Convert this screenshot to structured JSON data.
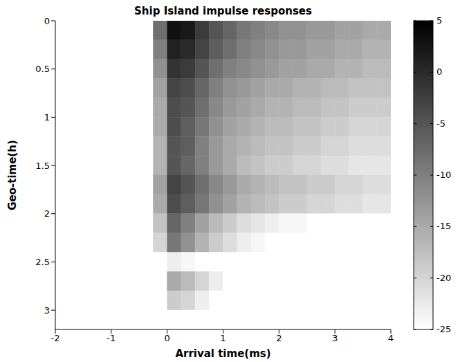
{
  "chart_data": {
    "type": "heatmap",
    "title": "Ship Island impulse responses",
    "x_label": "Arrival time(ms)",
    "y_label": "Geo-time(h)",
    "xlim": [
      -2,
      4
    ],
    "xticks": [
      -2,
      -1,
      0,
      1,
      2,
      3,
      4
    ],
    "ylim": [
      0,
      3.2
    ],
    "yticks": [
      0,
      0.5,
      1,
      1.5,
      2,
      2.5,
      3
    ],
    "x_bins": [
      -2,
      -1.75,
      -1.5,
      -1.25,
      -1,
      -0.75,
      -0.5,
      -0.25,
      0,
      0.25,
      0.5,
      0.75,
      1,
      1.25,
      1.5,
      1.75,
      2,
      2.25,
      2.5,
      2.75,
      3,
      3.25,
      3.5,
      3.75,
      4
    ],
    "y_bins": [
      0,
      0.2,
      0.4,
      0.6,
      0.8,
      1,
      1.2,
      1.4,
      1.6,
      1.8,
      2,
      2.2,
      2.4,
      2.6,
      2.8,
      3,
      3.2
    ],
    "cells": [
      [
        -25,
        -25,
        -25,
        -25,
        -25,
        -25,
        -25,
        -8,
        3,
        2,
        -2,
        -5,
        -7,
        -9,
        -10,
        -11,
        -12,
        -12,
        -13,
        -13,
        -14,
        -14,
        -15,
        -15
      ],
      [
        -25,
        -25,
        -25,
        -25,
        -25,
        -25,
        -25,
        -10,
        1,
        0,
        -3,
        -6,
        -8,
        -10,
        -11,
        -12,
        -13,
        -13,
        -14,
        -14,
        -15,
        -15,
        -16,
        -16
      ],
      [
        -25,
        -25,
        -25,
        -25,
        -25,
        -25,
        -25,
        -12,
        -1,
        -2,
        -5,
        -8,
        -10,
        -11,
        -12,
        -13,
        -14,
        -14,
        -15,
        -15,
        -16,
        -16,
        -17,
        -17
      ],
      [
        -25,
        -25,
        -25,
        -25,
        -25,
        -25,
        -25,
        -14,
        -3,
        -4,
        -7,
        -10,
        -12,
        -13,
        -14,
        -15,
        -15,
        -16,
        -16,
        -17,
        -17,
        -18,
        -18,
        -18
      ],
      [
        -25,
        -25,
        -25,
        -25,
        -25,
        -25,
        -25,
        -15,
        -4,
        -5,
        -8,
        -11,
        -13,
        -14,
        -15,
        -16,
        -16,
        -17,
        -17,
        -18,
        -18,
        -19,
        -19,
        -19
      ],
      [
        -25,
        -25,
        -25,
        -25,
        -25,
        -25,
        -25,
        -15,
        -4,
        -6,
        -9,
        -12,
        -14,
        -15,
        -16,
        -17,
        -17,
        -18,
        -18,
        -19,
        -19,
        -20,
        -20,
        -20
      ],
      [
        -25,
        -25,
        -25,
        -25,
        -25,
        -25,
        -25,
        -16,
        -5,
        -6,
        -10,
        -13,
        -15,
        -16,
        -17,
        -18,
        -18,
        -19,
        -19,
        -20,
        -20,
        -21,
        -21,
        -21
      ],
      [
        -25,
        -25,
        -25,
        -25,
        -25,
        -25,
        -25,
        -16,
        -5,
        -7,
        -10,
        -13,
        -15,
        -17,
        -18,
        -19,
        -19,
        -20,
        -20,
        -21,
        -21,
        -22,
        -22,
        -22
      ],
      [
        -25,
        -25,
        -25,
        -25,
        -25,
        -25,
        -25,
        -14,
        -3,
        -5,
        -8,
        -11,
        -13,
        -15,
        -16,
        -17,
        -18,
        -18,
        -19,
        -19,
        -20,
        -20,
        -21,
        -21
      ],
      [
        -25,
        -25,
        -25,
        -25,
        -25,
        -25,
        -25,
        -15,
        -4,
        -6,
        -9,
        -12,
        -14,
        -16,
        -17,
        -18,
        -19,
        -19,
        -20,
        -20,
        -21,
        -21,
        -22,
        -22
      ],
      [
        -25,
        -25,
        -25,
        -25,
        -25,
        -25,
        -25,
        -18,
        -7,
        -10,
        -14,
        -17,
        -19,
        -21,
        -22,
        -23,
        -24,
        -24,
        -25,
        -25,
        -25,
        -25,
        -25,
        -25
      ],
      [
        -25,
        -25,
        -25,
        -25,
        -25,
        -25,
        -25,
        -20,
        -9,
        -12,
        -16,
        -19,
        -21,
        -23,
        -24,
        -25,
        -25,
        -25,
        -25,
        -25,
        -25,
        -25,
        -25,
        -25
      ],
      [
        -25,
        -25,
        -25,
        -25,
        -25,
        -25,
        -25,
        -25,
        -23,
        -24,
        -25,
        -25,
        -25,
        -25,
        -25,
        -25,
        -25,
        -25,
        -25,
        -25,
        -25,
        -25,
        -25,
        -25
      ],
      [
        -25,
        -25,
        -25,
        -25,
        -25,
        -25,
        -25,
        -25,
        -15,
        -17,
        -20,
        -23,
        -25,
        -25,
        -25,
        -25,
        -25,
        -25,
        -25,
        -25,
        -25,
        -25,
        -25,
        -25
      ],
      [
        -25,
        -25,
        -25,
        -25,
        -25,
        -25,
        -25,
        -25,
        -19,
        -20,
        -23,
        -25,
        -25,
        -25,
        -25,
        -25,
        -25,
        -25,
        -25,
        -25,
        -25,
        -25,
        -25,
        -25
      ],
      [
        -25,
        -25,
        -25,
        -25,
        -25,
        -25,
        -25,
        -25,
        -25,
        -25,
        -25,
        -25,
        -25,
        -25,
        -25,
        -25,
        -25,
        -25,
        -25,
        -25,
        -25,
        -25,
        -25,
        -25
      ]
    ],
    "colorbar": {
      "range": [
        -25,
        5
      ],
      "ticks": [
        5,
        0,
        -5,
        -10,
        -15,
        -20,
        -25
      ]
    }
  }
}
